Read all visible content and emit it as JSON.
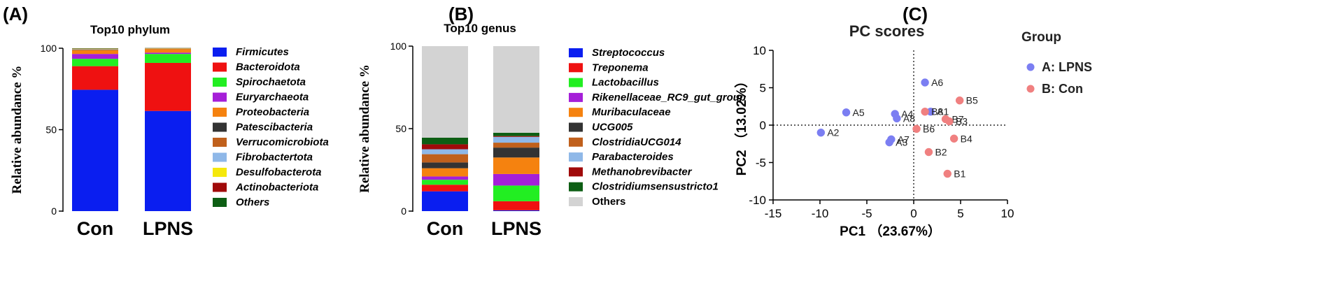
{
  "panel_labels": [
    "(A)",
    "(B)",
    "(C)"
  ],
  "chart_data": [
    {
      "type": "bar",
      "stacked": true,
      "title": "Top10 phylum",
      "ylabel": "Relative abundance %",
      "xlabel": "",
      "ylim": [
        0,
        100
      ],
      "yticks": [
        "0",
        "50",
        "100"
      ],
      "categories": [
        "Con",
        "LPNS"
      ],
      "series": [
        {
          "name": "Firmicutes",
          "color": "#0a1ef0",
          "values": [
            74.5,
            61.5
          ]
        },
        {
          "name": "Bacteroidota",
          "color": "#ef1111",
          "values": [
            14.5,
            29.5
          ]
        },
        {
          "name": "Spirochaetota",
          "color": "#22ee22",
          "values": [
            4.5,
            5.5
          ]
        },
        {
          "name": "Euryarchaeota",
          "color": "#a51fd8",
          "values": [
            3.0,
            0.8
          ]
        },
        {
          "name": "Proteobacteria",
          "color": "#f5820f",
          "values": [
            2.3,
            2.2
          ]
        },
        {
          "name": "Patescibacteria",
          "color": "#333333",
          "values": [
            0.2,
            0.1
          ]
        },
        {
          "name": "Verrucomicrobiota",
          "color": "#c0601c",
          "values": [
            0.3,
            0.2
          ]
        },
        {
          "name": "Fibrobactertota",
          "color": "#8fb8e8",
          "values": [
            0.2,
            0.1
          ]
        },
        {
          "name": "Desulfobacterota",
          "color": "#f5e80c",
          "values": [
            0.2,
            0.1
          ]
        },
        {
          "name": "Actinobacteriota",
          "color": "#a00a0a",
          "values": [
            0.1,
            0.1
          ]
        },
        {
          "name": "Others",
          "color": "#0d5e14",
          "values": [
            0.2,
            0.1
          ]
        }
      ]
    },
    {
      "type": "bar",
      "stacked": true,
      "title": "Top10 genus",
      "ylabel": "Relative abundance %",
      "xlabel": "",
      "ylim": [
        0,
        100
      ],
      "yticks": [
        "0",
        "50",
        "100"
      ],
      "categories": [
        "Con",
        "LPNS"
      ],
      "series": [
        {
          "name": "Streptococcus",
          "color": "#0a1ef0",
          "italic": true,
          "values": [
            12,
            0.5
          ]
        },
        {
          "name": "Treponema",
          "color": "#ef1111",
          "italic": true,
          "values": [
            4,
            5.5
          ]
        },
        {
          "name": "Lactobacillus",
          "color": "#22ee22",
          "italic": true,
          "values": [
            3,
            9.5
          ]
        },
        {
          "name": "Rikenellaceae_RC9_gut_group",
          "color": "#a51fd8",
          "italic": true,
          "values": [
            2,
            7
          ]
        },
        {
          "name": "Muribaculaceae",
          "color": "#f5820f",
          "italic": true,
          "values": [
            5,
            10
          ]
        },
        {
          "name": "UCG005",
          "color": "#333333",
          "italic": true,
          "values": [
            3.5,
            6
          ]
        },
        {
          "name": "ClostridiaUCG014",
          "color": "#c0601c",
          "italic": true,
          "values": [
            5,
            3
          ]
        },
        {
          "name": "Parabacteroides",
          "color": "#8fb8e8",
          "italic": true,
          "values": [
            3,
            3.5
          ]
        },
        {
          "name": "Methanobrevibacter",
          "color": "#a00a0a",
          "italic": true,
          "values": [
            3,
            0.5
          ]
        },
        {
          "name": "Clostridiumsensustricto1",
          "color": "#0d5e14",
          "italic": true,
          "values": [
            4,
            2
          ]
        },
        {
          "name": "Others",
          "color": "#d3d3d3",
          "italic": false,
          "values": [
            55.5,
            52.5
          ]
        }
      ]
    },
    {
      "type": "scatter",
      "title": "PC scores",
      "xlabel": "PC1 （23.67%）",
      "ylabel": "PC2 （13.02%）",
      "xlim": [
        -15,
        10
      ],
      "ylim": [
        -10,
        10
      ],
      "xticks": [
        -15,
        -10,
        -5,
        0,
        5,
        10
      ],
      "yticks": [
        -10,
        -5,
        0,
        5,
        10
      ],
      "legend_title": "Group",
      "series": [
        {
          "name": "A: LPNS",
          "color": "#7b7ef2",
          "points": [
            {
              "label": "A2",
              "x": -9.9,
              "y": -1.0
            },
            {
              "label": "A5",
              "x": -7.2,
              "y": 1.7
            },
            {
              "label": "A4",
              "x": -2.0,
              "y": 1.5
            },
            {
              "label": "A8",
              "x": -1.8,
              "y": 0.9
            },
            {
              "label": "A7",
              "x": -2.4,
              "y": -1.9
            },
            {
              "label": "A3",
              "x": -2.6,
              "y": -2.3
            },
            {
              "label": "A6",
              "x": 1.2,
              "y": 5.7
            },
            {
              "label": "A1",
              "x": 1.8,
              "y": 1.8
            }
          ]
        },
        {
          "name": "B: Con",
          "color": "#f08080",
          "points": [
            {
              "label": "B5",
              "x": 4.9,
              "y": 3.3
            },
            {
              "label": "B8",
              "x": 1.2,
              "y": 1.8
            },
            {
              "label": "B7",
              "x": 3.4,
              "y": 0.8
            },
            {
              "label": "B3",
              "x": 3.8,
              "y": 0.5
            },
            {
              "label": "B6",
              "x": 0.3,
              "y": -0.5
            },
            {
              "label": "B4",
              "x": 4.3,
              "y": -1.8
            },
            {
              "label": "B2",
              "x": 1.6,
              "y": -3.6
            },
            {
              "label": "B1",
              "x": 3.6,
              "y": -6.5
            }
          ]
        }
      ]
    }
  ]
}
